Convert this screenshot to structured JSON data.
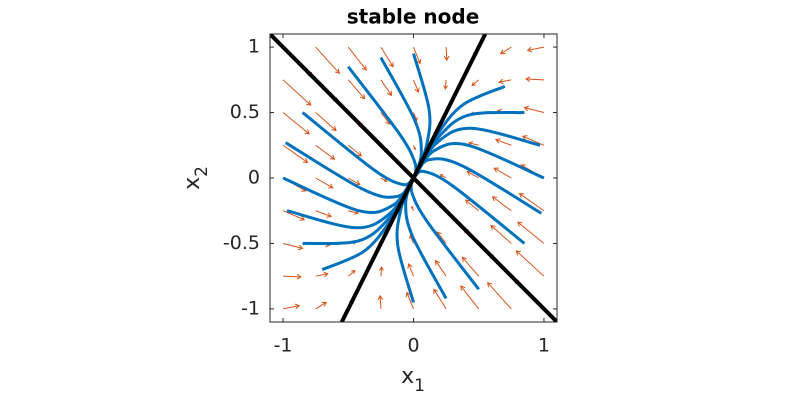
{
  "chart_data": {
    "type": "phase-portrait",
    "title": "stable node",
    "xlabel": {
      "text": "x",
      "subscript": "1"
    },
    "ylabel": {
      "text": "x",
      "subscript": "2"
    },
    "xlim": [
      -1.1,
      1.1
    ],
    "ylim": [
      -1.1,
      1.1
    ],
    "xticks": [
      -1,
      0,
      1
    ],
    "yticks": [
      -1,
      -0.5,
      0,
      0.5,
      1
    ],
    "quiver": {
      "color": "#d95319",
      "x": [
        -1,
        -0.75,
        -0.5,
        -0.25,
        0,
        0.25,
        0.5,
        0.75,
        1
      ],
      "y": [
        -1,
        -0.75,
        -0.5,
        -0.25,
        0,
        0.25,
        0.5,
        0.75,
        1
      ],
      "u": [
        [
          1.67,
          1.08,
          0.5,
          -0.08,
          -0.67,
          -1.25,
          -1.83,
          -2.42,
          -3.0
        ],
        [
          1.83,
          1.25,
          0.67,
          0.08,
          -0.5,
          -1.08,
          -1.67,
          -2.25,
          -2.83
        ],
        [
          2.0,
          1.42,
          0.83,
          0.25,
          -0.33,
          -0.92,
          -1.5,
          -2.08,
          -2.67
        ],
        [
          2.17,
          1.58,
          1.0,
          0.42,
          -0.17,
          -0.75,
          -1.33,
          -1.92,
          -2.5
        ],
        [
          2.33,
          1.75,
          1.17,
          0.58,
          0,
          -0.58,
          -1.17,
          -1.75,
          -2.33
        ],
        [
          2.5,
          1.92,
          1.33,
          0.75,
          0.17,
          -0.42,
          -1.0,
          -1.58,
          -2.17
        ],
        [
          2.67,
          2.08,
          1.5,
          0.92,
          0.33,
          -0.25,
          -0.83,
          -1.42,
          -2.0
        ],
        [
          2.83,
          2.25,
          1.67,
          1.08,
          0.5,
          -0.08,
          -0.67,
          -1.25,
          -1.83
        ],
        [
          3.0,
          2.42,
          1.83,
          1.25,
          0.67,
          0.08,
          -0.5,
          -1.08,
          -1.67
        ]
      ],
      "v": [
        [
          0.33,
          0.67,
          1.0,
          1.33,
          1.67,
          2.0,
          2.33,
          2.67,
          3.0
        ],
        [
          -0.08,
          0.25,
          0.58,
          0.92,
          1.25,
          1.58,
          1.92,
          2.25,
          2.58
        ],
        [
          -0.5,
          -0.17,
          0.17,
          0.5,
          0.83,
          1.17,
          1.5,
          1.83,
          2.17
        ],
        [
          -0.92,
          -0.58,
          -0.25,
          0.08,
          0.42,
          0.75,
          1.08,
          1.42,
          1.75
        ],
        [
          -1.33,
          -1.0,
          -0.67,
          -0.33,
          0,
          0.33,
          0.67,
          1.0,
          1.33
        ],
        [
          -1.75,
          -1.42,
          -1.08,
          -0.75,
          -0.42,
          -0.08,
          0.25,
          0.58,
          0.92
        ],
        [
          -2.17,
          -1.83,
          -1.5,
          -1.17,
          -0.83,
          -0.5,
          -0.17,
          0.17,
          0.5
        ],
        [
          -2.58,
          -2.25,
          -1.92,
          -1.58,
          -1.25,
          -0.92,
          -0.58,
          -0.25,
          0.08
        ],
        [
          -3.0,
          -2.67,
          -2.33,
          -2.0,
          -1.67,
          -1.33,
          -1.0,
          -0.67,
          -0.33
        ]
      ]
    },
    "trajectory_color": "#0072bd",
    "trajectories": [
      {
        "x": [
          -1,
          -0.42,
          -0.16,
          -0.02
        ],
        "y": [
          0,
          -0.25,
          -0.21,
          -0.03
        ]
      },
      {
        "x": [
          -0.98,
          -0.38,
          -0.12,
          -0.01
        ],
        "y": [
          0.27,
          -0.09,
          -0.14,
          -0.02
        ]
      },
      {
        "x": [
          -0.85,
          -0.3,
          -0.08,
          -0.01
        ],
        "y": [
          0.5,
          0.06,
          -0.05,
          -0.01
        ]
      },
      {
        "x": [
          -0.97,
          -0.44,
          -0.18,
          -0.02
        ],
        "y": [
          -0.25,
          -0.38,
          -0.27,
          -0.04
        ]
      },
      {
        "x": [
          -0.85,
          -0.42,
          -0.19,
          -0.02
        ],
        "y": [
          -0.5,
          -0.48,
          -0.31,
          -0.05
        ]
      },
      {
        "x": [
          -0.7,
          -0.38,
          -0.18,
          -0.02
        ],
        "y": [
          -0.7,
          -0.56,
          -0.33,
          -0.05
        ]
      },
      {
        "x": [
          -0.5,
          -0.11,
          0.01,
          0.01
        ],
        "y": [
          0.85,
          0.34,
          0.12,
          0.01
        ]
      },
      {
        "x": [
          -0.25,
          0.01,
          0.06,
          0.01
        ],
        "y": [
          0.92,
          0.44,
          0.19,
          0.02
        ]
      },
      {
        "x": [
          0,
          0.12,
          0.1,
          0.02
        ],
        "y": [
          0.95,
          0.52,
          0.25,
          0.03
        ]
      },
      {
        "x": [
          1,
          0.42,
          0.16,
          0.02
        ],
        "y": [
          0,
          0.25,
          0.21,
          0.03
        ]
      },
      {
        "x": [
          0.98,
          0.38,
          0.12,
          0.01
        ],
        "y": [
          -0.27,
          0.09,
          0.14,
          0.02
        ]
      },
      {
        "x": [
          0.85,
          0.3,
          0.08,
          0.01
        ],
        "y": [
          -0.5,
          -0.06,
          0.05,
          0.01
        ]
      },
      {
        "x": [
          0.97,
          0.44,
          0.18,
          0.02
        ],
        "y": [
          0.25,
          0.38,
          0.27,
          0.04
        ]
      },
      {
        "x": [
          0.85,
          0.42,
          0.19,
          0.02
        ],
        "y": [
          0.5,
          0.48,
          0.31,
          0.05
        ]
      },
      {
        "x": [
          0.7,
          0.38,
          0.18,
          0.02
        ],
        "y": [
          0.7,
          0.56,
          0.33,
          0.05
        ]
      },
      {
        "x": [
          0.5,
          0.11,
          -0.01,
          -0.01
        ],
        "y": [
          -0.85,
          -0.34,
          -0.12,
          -0.01
        ]
      },
      {
        "x": [
          0.25,
          -0.01,
          -0.06,
          -0.01
        ],
        "y": [
          -0.92,
          -0.44,
          -0.19,
          -0.02
        ]
      },
      {
        "x": [
          0,
          -0.12,
          -0.1,
          -0.02
        ],
        "y": [
          -0.95,
          -0.52,
          -0.25,
          -0.03
        ]
      }
    ],
    "eigenline_color": "#000000",
    "eigenlines": [
      {
        "x": [
          -1.1,
          1.1
        ],
        "y": [
          1.1,
          -1.1
        ]
      },
      {
        "x": [
          -0.55,
          0.55
        ],
        "y": [
          -1.1,
          1.1
        ]
      }
    ]
  }
}
